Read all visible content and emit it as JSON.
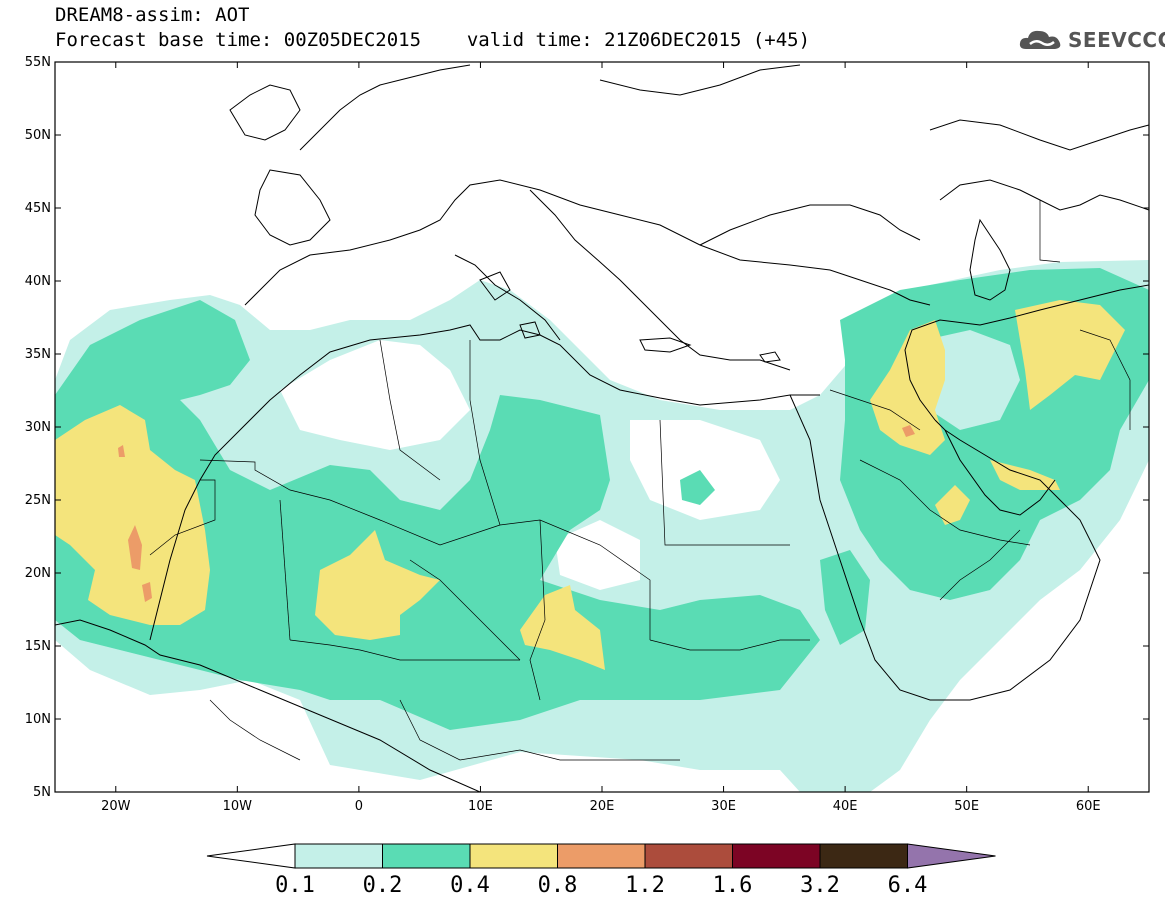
{
  "header": {
    "title": "DREAM8-assim: AOT",
    "base_time_label": "Forecast base time:",
    "base_time": "00Z05DEC2015",
    "valid_time_label": "valid time:",
    "valid_time": "21Z06DEC2015 (+45)"
  },
  "logo": {
    "text": "SEEVCCC",
    "icon": "cloud-icon"
  },
  "map": {
    "lat_range": [
      5,
      55
    ],
    "lon_range": [
      -25,
      65
    ],
    "lat_ticks": [
      "55N",
      "50N",
      "45N",
      "40N",
      "35N",
      "30N",
      "25N",
      "20N",
      "15N",
      "10N",
      "5N"
    ],
    "lon_ticks": [
      "20W",
      "10W",
      "0",
      "10E",
      "20E",
      "30E",
      "40E",
      "50E",
      "60E"
    ],
    "variable": "AOT"
  },
  "colorbar": {
    "labels": [
      "0.1",
      "0.2",
      "0.4",
      "0.8",
      "1.2",
      "1.6",
      "3.2",
      "6.4"
    ],
    "colors": [
      "#ffffff",
      "#c4f0e8",
      "#5adcb4",
      "#f4e47c",
      "#ec9c68",
      "#ac4c3c",
      "#7c0424",
      "#3c2814",
      "#9474ac"
    ]
  }
}
